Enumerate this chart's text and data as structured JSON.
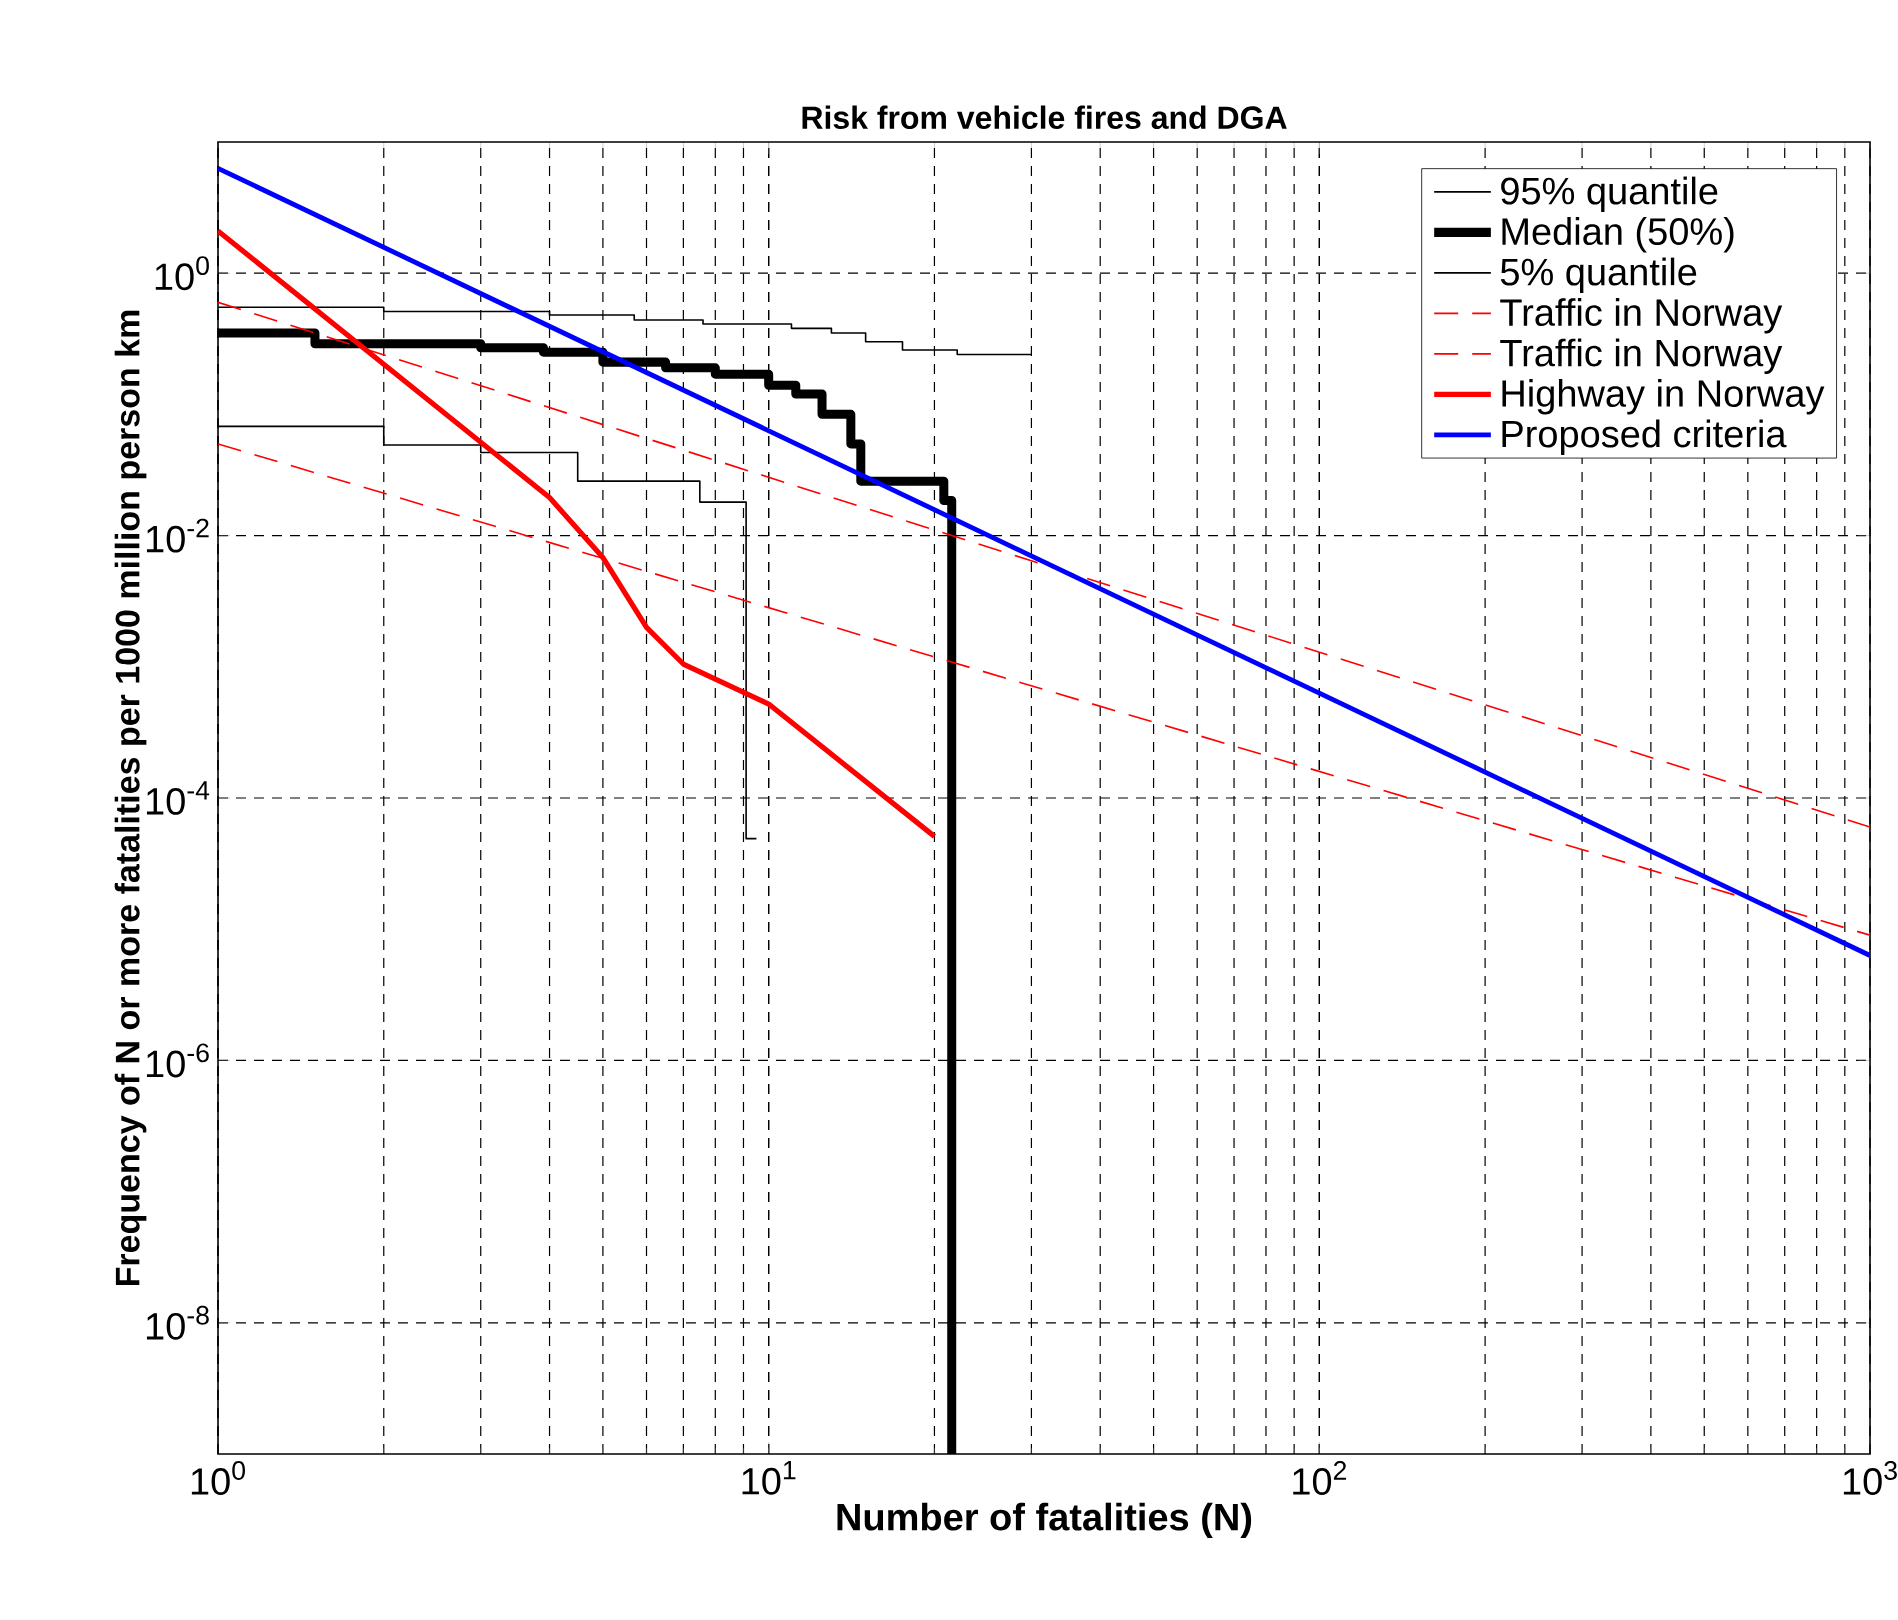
{
  "chart_data": {
    "type": "line",
    "title": "Risk from vehicle fires and DGA",
    "xlabel": "Number of fatalities (N)",
    "ylabel": "Frequency of N or more fatalities per 1000 million person km",
    "log": "xy",
    "grid": true,
    "legend": "top right",
    "xlim": [
      1,
      1000
    ],
    "ylim": [
      1e-09,
      10
    ],
    "xticks": [
      {
        "value": 1,
        "label": "10$^{0}$"
      },
      {
        "value": 10,
        "label": "10$^{1}$"
      },
      {
        "value": 100,
        "label": "10$^{2}$"
      },
      {
        "value": 1000,
        "label": "10$^{3}$"
      }
    ],
    "yticks": [
      {
        "value": 1e-08,
        "label": "10$^{-8}$"
      },
      {
        "value": 1e-06,
        "label": "10$^{-6}$"
      },
      {
        "value": 0.0001,
        "label": "10$^{-4}$"
      },
      {
        "value": 0.01,
        "label": "10$^{-2}$"
      },
      {
        "value": 1,
        "label": "10$^{0}$"
      }
    ],
    "series": [
      {
        "name": "95% quantile",
        "type": "step",
        "color": "#000000",
        "line_style": "solid",
        "x": [
          1,
          2,
          4,
          5.7,
          7.6,
          11,
          13,
          15,
          17.5,
          22,
          30
        ],
        "values": [
          0.55,
          0.51,
          0.48,
          0.44,
          0.41,
          0.38,
          0.35,
          0.3,
          0.26,
          0.24,
          0.24
        ]
      },
      {
        "name": "Median (50%)",
        "type": "step",
        "color": "#000000",
        "line_style": "solid",
        "x": [
          1,
          1.5,
          3,
          3.9,
          5,
          6.5,
          8,
          10,
          11.2,
          12.5,
          14.1,
          14.7,
          20.8,
          21.5
        ],
        "values": [
          0.35,
          0.29,
          0.27,
          0.25,
          0.21,
          0.19,
          0.17,
          0.14,
          0.12,
          0.084,
          0.05,
          0.026,
          0.0185,
          1e-09
        ]
      },
      {
        "name": "5% quantile",
        "type": "step",
        "color": "#000000",
        "line_style": "solid",
        "x": [
          1,
          2,
          3,
          4.5,
          7.5,
          9.1,
          9.5
        ],
        "values": [
          0.068,
          0.049,
          0.043,
          0.026,
          0.018,
          4.9e-05,
          4.9e-05
        ]
      },
      {
        "name": "Traffic in Norway",
        "color": "#ff0000",
        "line_style": "dashed",
        "x": [
          1,
          1000
        ],
        "values": [
          0.6,
          6e-05
        ]
      },
      {
        "name": "Traffic in Norway",
        "color": "#ff0000",
        "line_style": "dashed",
        "x": [
          1,
          1000
        ],
        "values": [
          0.05,
          9e-06
        ]
      },
      {
        "name": "Highway in Norway",
        "color": "#ff0000",
        "line_style": "solid",
        "x": [
          1,
          4,
          5,
          6,
          7,
          10,
          20
        ],
        "values": [
          2.1,
          0.0195,
          0.0068,
          0.002,
          0.00105,
          0.00052,
          5.1e-05
        ]
      },
      {
        "name": "Proposed criteria",
        "color": "#0000ff",
        "line_style": "solid",
        "x": [
          1,
          1000
        ],
        "values": [
          6.3,
          6.3e-06
        ]
      }
    ]
  }
}
